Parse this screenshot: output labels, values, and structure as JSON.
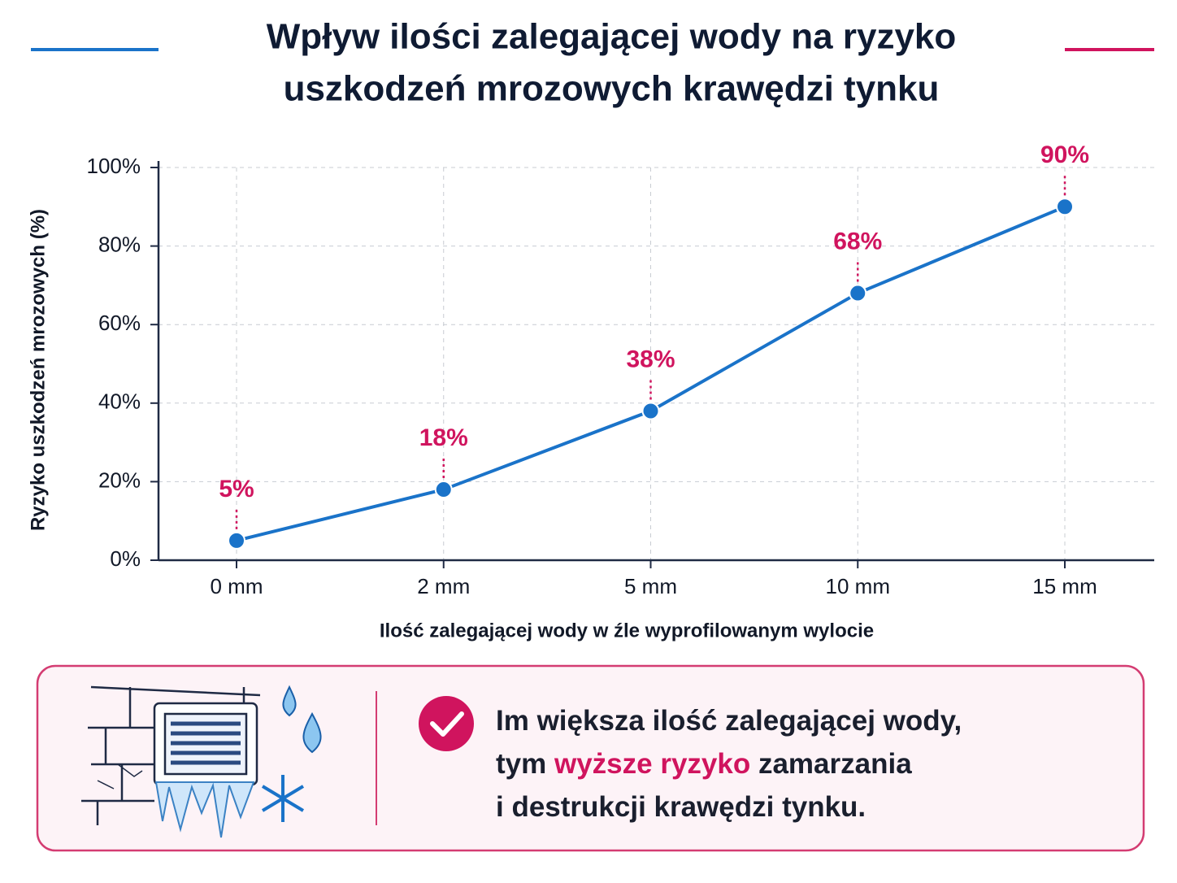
{
  "chart_data": {
    "type": "line",
    "title": [
      "Wpływ ilości zalegającej wody na ryzyko",
      "uszkodzeń mrozowych krawędzi tynku"
    ],
    "x_label": "Ilość zalegającej wody w źle wyprofilowanym wylocie",
    "y_label": "Ryzyko uszkodzeń mrozowych (%)",
    "categories": [
      "0 mm",
      "2 mm",
      "5 mm",
      "10 mm",
      "15 mm"
    ],
    "values": [
      5,
      18,
      38,
      68,
      90
    ],
    "value_labels": [
      "5%",
      "18%",
      "38%",
      "68%",
      "90%"
    ],
    "color": "#1a73c9",
    "label_color": "#d0145e",
    "ylim": [
      0,
      100
    ],
    "yticks": [
      {
        "value": 0,
        "label": "0%"
      },
      {
        "value": 20,
        "label": "20%"
      },
      {
        "value": 40,
        "label": "40%"
      },
      {
        "value": 60,
        "label": "60%"
      },
      {
        "value": 80,
        "label": "80%"
      },
      {
        "value": 100,
        "label": "100%"
      }
    ],
    "grid": true
  },
  "callout": {
    "line1": "Im większa ilość zalegającej wody,",
    "line2_start": "tym",
    "highlight": "wyższe ryzyko",
    "line2_end": "zamarzania",
    "line3": "i destrukcji krawędzi tynku."
  }
}
